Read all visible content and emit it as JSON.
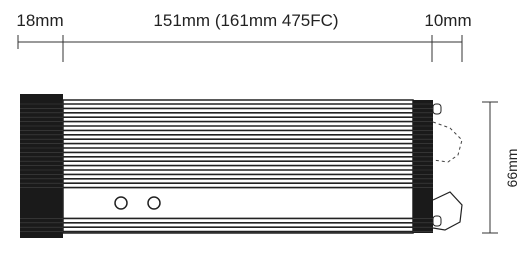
{
  "dimensions": {
    "left": "18mm",
    "middle": "151mm (161mm 475FC)",
    "right": "10mm",
    "height": "66mm"
  }
}
